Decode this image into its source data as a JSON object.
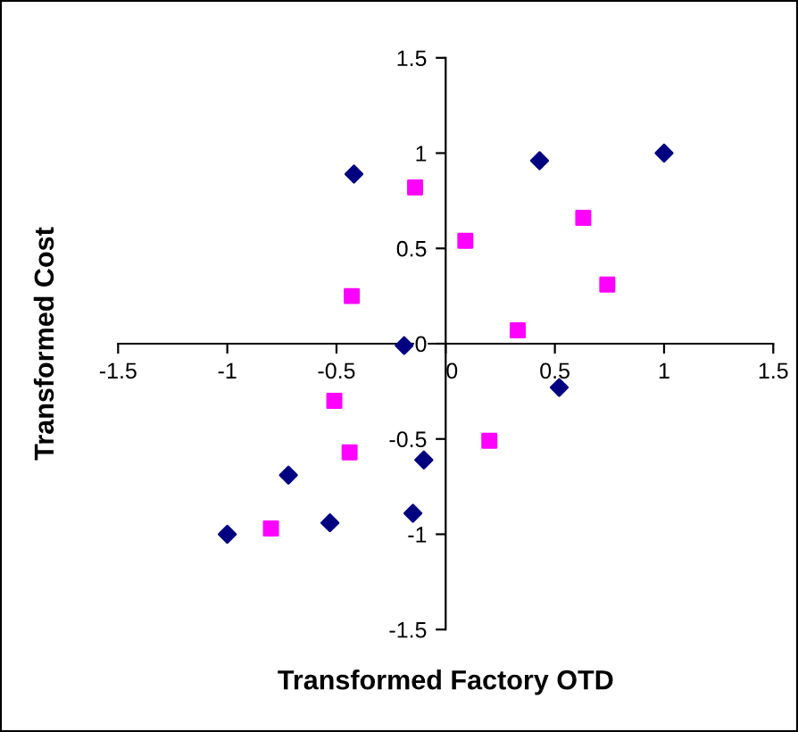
{
  "chart_data": {
    "type": "scatter",
    "xlabel": "Transformed Factory OTD",
    "ylabel": "Transformed Cost",
    "xlim": [
      -1.5,
      1.5
    ],
    "ylim": [
      -1.5,
      1.5
    ],
    "xticks": [
      -1.5,
      -1,
      -0.5,
      0,
      0.5,
      1,
      1.5
    ],
    "yticks": [
      -1.5,
      -1,
      -0.5,
      0,
      0.5,
      1,
      1.5
    ],
    "grid": false,
    "legend": false,
    "series": [
      {
        "color": "#000080",
        "marker": "diamond",
        "x": [
          -0.42,
          0.43,
          1.0,
          -0.19,
          0.52,
          -0.1,
          -0.72,
          -1.0,
          -0.53,
          -0.15
        ],
        "values": [
          0.89,
          0.96,
          1.0,
          -0.01,
          -0.23,
          -0.61,
          -0.69,
          -1.0,
          -0.94,
          -0.89
        ]
      },
      {
        "color": "#ff00ff",
        "marker": "square",
        "x": [
          -0.14,
          0.09,
          0.63,
          0.74,
          0.33,
          -0.43,
          -0.51,
          -0.44,
          0.2,
          -0.8
        ],
        "values": [
          0.82,
          0.54,
          0.66,
          0.31,
          0.07,
          0.25,
          -0.3,
          -0.57,
          -0.51,
          -0.97
        ]
      }
    ]
  }
}
